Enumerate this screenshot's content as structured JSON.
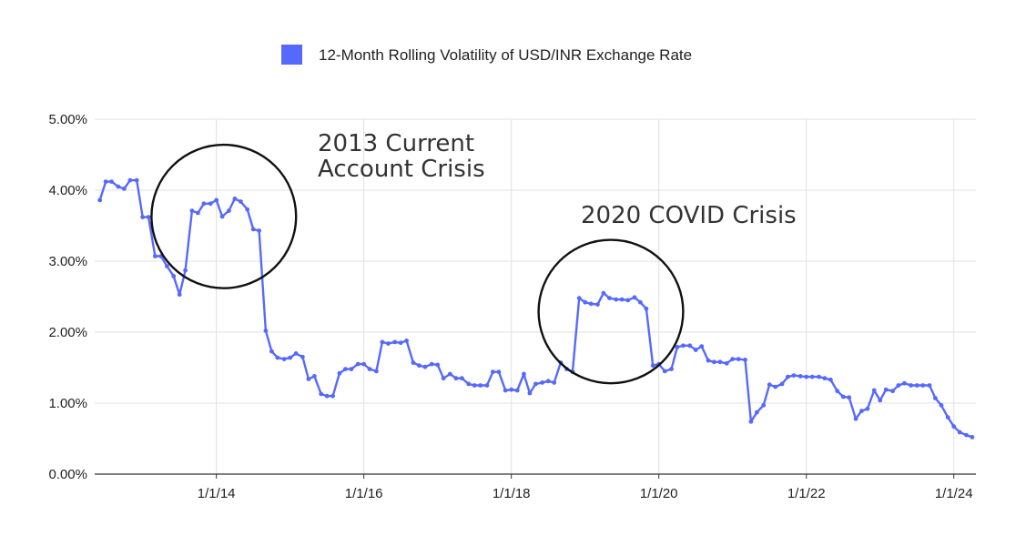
{
  "chart_data": {
    "type": "line",
    "title": "",
    "xlabel": "",
    "ylabel": "",
    "ylim": [
      0,
      5
    ],
    "xlim": [
      2012.35,
      2024.3
    ],
    "y_ticks": [
      {
        "value": 0,
        "label": "0.00%"
      },
      {
        "value": 1,
        "label": "1.00%"
      },
      {
        "value": 2,
        "label": "2.00%"
      },
      {
        "value": 3,
        "label": "3.00%"
      },
      {
        "value": 4,
        "label": "4.00%"
      },
      {
        "value": 5,
        "label": "5.00%"
      }
    ],
    "x_ticks": [
      {
        "value": 2014,
        "label": "1/1/14"
      },
      {
        "value": 2016,
        "label": "1/1/16"
      },
      {
        "value": 2018,
        "label": "1/1/18"
      },
      {
        "value": 2020,
        "label": "1/1/20"
      },
      {
        "value": 2022,
        "label": "1/1/22"
      },
      {
        "value": 2024,
        "label": "1/1/24"
      }
    ],
    "grid": true,
    "legend": {
      "position": "top-center",
      "entries": [
        {
          "label": "12-Month Rolling Volatility of USD/INR Exchange Rate",
          "color": "#5669ff"
        }
      ]
    },
    "series": [
      {
        "name": "12-Month Rolling Volatility of USD/INR Exchange Rate",
        "color": "#5669ff",
        "x": [
          2012.42,
          2012.5,
          2012.58,
          2012.67,
          2012.75,
          2012.83,
          2012.92,
          2013.0,
          2013.08,
          2013.17,
          2013.25,
          2013.33,
          2013.42,
          2013.5,
          2013.58,
          2013.67,
          2013.75,
          2013.83,
          2013.92,
          2014.0,
          2014.08,
          2014.17,
          2014.25,
          2014.33,
          2014.42,
          2014.5,
          2014.58,
          2014.67,
          2014.75,
          2014.83,
          2014.92,
          2015.0,
          2015.08,
          2015.17,
          2015.25,
          2015.33,
          2015.42,
          2015.5,
          2015.58,
          2015.67,
          2015.75,
          2015.83,
          2015.92,
          2016.0,
          2016.08,
          2016.17,
          2016.25,
          2016.33,
          2016.42,
          2016.5,
          2016.58,
          2016.67,
          2016.75,
          2016.83,
          2016.92,
          2017.0,
          2017.08,
          2017.17,
          2017.25,
          2017.33,
          2017.42,
          2017.5,
          2017.58,
          2017.67,
          2017.75,
          2017.83,
          2017.92,
          2018.0,
          2018.08,
          2018.17,
          2018.25,
          2018.33,
          2018.42,
          2018.5,
          2018.58,
          2018.67,
          2018.75,
          2018.83,
          2018.92,
          2019.0,
          2019.08,
          2019.17,
          2019.25,
          2019.33,
          2019.42,
          2019.5,
          2019.58,
          2019.67,
          2019.75,
          2019.83,
          2019.92,
          2020.0,
          2020.08,
          2020.17,
          2020.25,
          2020.33,
          2020.42,
          2020.5,
          2020.58,
          2020.67,
          2020.75,
          2020.83,
          2020.92,
          2021.0,
          2021.08,
          2021.17,
          2021.25,
          2021.33,
          2021.42,
          2021.5,
          2021.58,
          2021.67,
          2021.75,
          2021.83,
          2021.92,
          2022.0,
          2022.08,
          2022.17,
          2022.25,
          2022.33,
          2022.42,
          2022.5,
          2022.58,
          2022.67,
          2022.75,
          2022.83,
          2022.92,
          2023.0,
          2023.08,
          2023.17,
          2023.25,
          2023.33,
          2023.42,
          2023.5,
          2023.58,
          2023.67,
          2023.75,
          2023.83,
          2023.92,
          2024.0,
          2024.08,
          2024.17,
          2024.25
        ],
        "values": [
          3.86,
          4.12,
          4.12,
          4.05,
          4.02,
          4.14,
          4.14,
          3.62,
          3.62,
          3.07,
          3.07,
          2.93,
          2.79,
          2.53,
          2.87,
          3.71,
          3.68,
          3.81,
          3.81,
          3.86,
          3.63,
          3.71,
          3.88,
          3.84,
          3.73,
          3.45,
          3.43,
          2.02,
          1.73,
          1.64,
          1.62,
          1.64,
          1.7,
          1.65,
          1.34,
          1.38,
          1.13,
          1.1,
          1.1,
          1.42,
          1.48,
          1.48,
          1.55,
          1.55,
          1.48,
          1.45,
          1.86,
          1.84,
          1.86,
          1.85,
          1.88,
          1.57,
          1.53,
          1.51,
          1.55,
          1.54,
          1.35,
          1.41,
          1.35,
          1.35,
          1.27,
          1.25,
          1.25,
          1.25,
          1.44,
          1.44,
          1.18,
          1.19,
          1.18,
          1.41,
          1.14,
          1.27,
          1.29,
          1.31,
          1.29,
          1.57,
          1.48,
          1.44,
          2.48,
          2.42,
          2.4,
          2.39,
          2.55,
          2.48,
          2.46,
          2.46,
          2.45,
          2.49,
          2.42,
          2.33,
          1.53,
          1.55,
          1.45,
          1.48,
          1.79,
          1.81,
          1.81,
          1.75,
          1.8,
          1.6,
          1.58,
          1.58,
          1.56,
          1.62,
          1.62,
          1.61,
          0.74,
          0.87,
          0.97,
          1.26,
          1.23,
          1.27,
          1.37,
          1.39,
          1.38,
          1.37,
          1.37,
          1.37,
          1.35,
          1.33,
          1.17,
          1.09,
          1.08,
          0.78,
          0.89,
          0.92,
          1.18,
          1.04,
          1.19,
          1.17,
          1.25,
          1.28,
          1.25,
          1.25,
          1.25,
          1.25,
          1.07,
          0.97,
          0.8,
          0.67,
          0.59,
          0.55,
          0.52
        ]
      }
    ],
    "annotations": [
      {
        "lines": [
          "2013 Current",
          "Account Crisis"
        ],
        "circle_center": [
          2014.1,
          3.63
        ],
        "circle_radius_x": 0.98,
        "circle_radius_y": 1.01
      },
      {
        "lines": [
          "2020 COVID Crisis"
        ],
        "circle_center": [
          2019.35,
          2.29
        ],
        "circle_radius_x": 0.98,
        "circle_radius_y": 1.01
      }
    ]
  }
}
